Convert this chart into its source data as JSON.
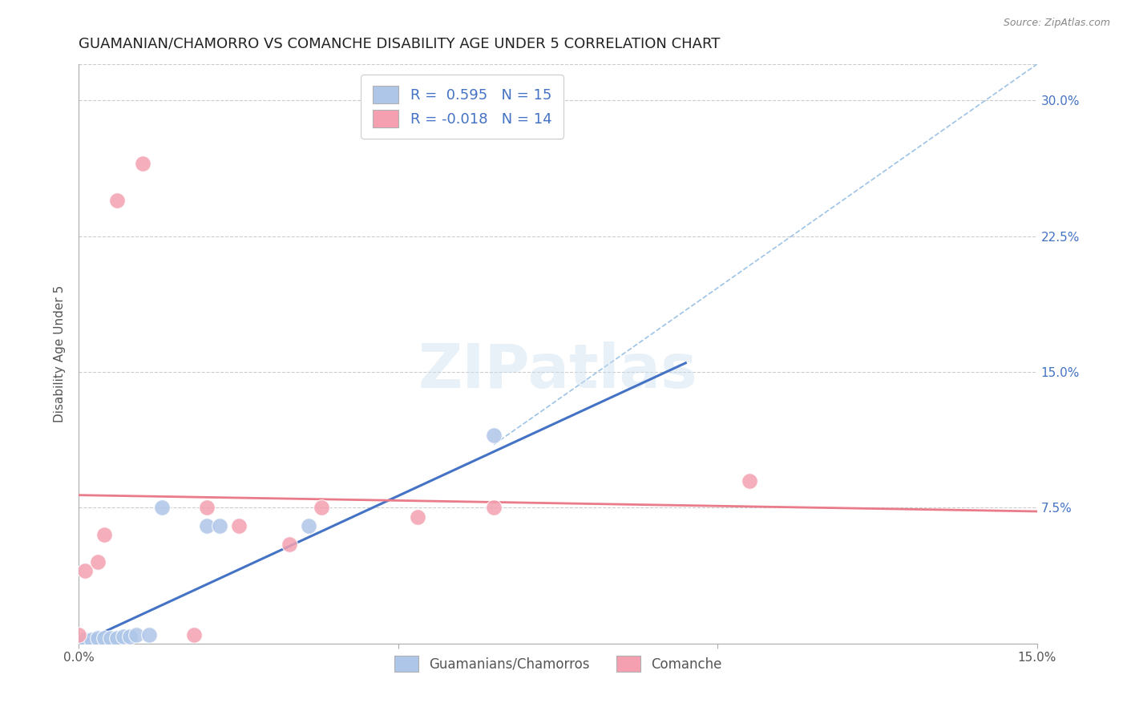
{
  "title": "GUAMANIAN/CHAMORRO VS COMANCHE DISABILITY AGE UNDER 5 CORRELATION CHART",
  "source": "Source: ZipAtlas.com",
  "ylabel": "Disability Age Under 5",
  "xlim": [
    0.0,
    0.15
  ],
  "ylim": [
    0.0,
    0.32
  ],
  "xticks": [
    0.0,
    0.05,
    0.1,
    0.15
  ],
  "xtick_labels": [
    "0.0%",
    "",
    "",
    "15.0%"
  ],
  "yticks": [
    0.0,
    0.075,
    0.15,
    0.225,
    0.3
  ],
  "ytick_labels_right": [
    "",
    "7.5%",
    "15.0%",
    "22.5%",
    "30.0%"
  ],
  "blue_scatter_x": [
    0.001,
    0.002,
    0.003,
    0.004,
    0.005,
    0.006,
    0.007,
    0.008,
    0.009,
    0.011,
    0.013,
    0.02,
    0.022,
    0.036,
    0.065
  ],
  "blue_scatter_y": [
    0.002,
    0.002,
    0.003,
    0.003,
    0.003,
    0.003,
    0.004,
    0.004,
    0.005,
    0.005,
    0.075,
    0.065,
    0.065,
    0.065,
    0.115
  ],
  "pink_scatter_x": [
    0.0,
    0.001,
    0.003,
    0.004,
    0.006,
    0.01,
    0.018,
    0.02,
    0.025,
    0.033,
    0.038,
    0.053,
    0.065,
    0.105
  ],
  "pink_scatter_y": [
    0.005,
    0.04,
    0.045,
    0.06,
    0.245,
    0.265,
    0.005,
    0.075,
    0.065,
    0.055,
    0.075,
    0.07,
    0.075,
    0.09
  ],
  "blue_line_x": [
    0.0,
    0.095
  ],
  "blue_line_y": [
    0.0,
    0.155
  ],
  "pink_line_x": [
    0.0,
    0.15
  ],
  "pink_line_y": [
    0.082,
    0.073
  ],
  "dashed_line_x": [
    0.065,
    0.15
  ],
  "dashed_line_y": [
    0.11,
    0.32
  ],
  "blue_color": "#4472c4",
  "pink_color": "#e97b8a",
  "scatter_blue": "#aec6e8",
  "scatter_pink": "#f4a0b0",
  "dashed_color": "#9dc3e6",
  "watermark": "ZIPatlas",
  "background_color": "#ffffff",
  "legend_text_color": "#4472c4",
  "title_fontsize": 13,
  "axis_label_fontsize": 11,
  "tick_fontsize": 11,
  "scatter_size": 200,
  "right_tick_color": "#4472c4"
}
